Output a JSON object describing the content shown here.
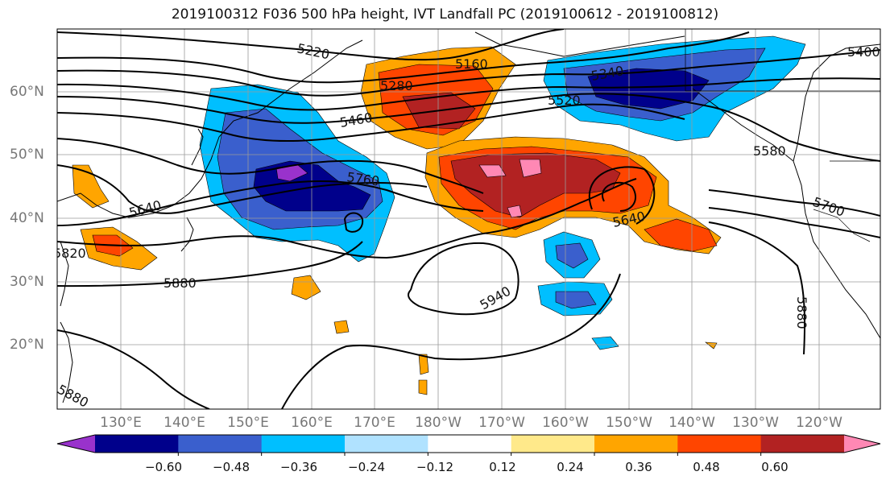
{
  "title": "2019100312 F036 500 hPa height, IVT Landfall PC (2019100612 - 2019100812)",
  "lat_labels": [
    "60°N",
    "50°N",
    "40°N",
    "30°N",
    "20°N"
  ],
  "lon_labels": [
    "130°E",
    "140°E",
    "150°E",
    "160°E",
    "170°E",
    "180°W",
    "170°W",
    "160°W",
    "150°W",
    "140°W",
    "130°W",
    "120°W"
  ],
  "contour_labels": [
    "5220",
    "5160",
    "5400",
    "5280",
    "5340",
    "5460",
    "5520",
    "5580",
    "5640",
    "5760",
    "5640",
    "5700",
    "5820",
    "5880",
    "5940",
    "5880",
    "5880"
  ],
  "colorbar": {
    "ticks": [
      "−0.60",
      "−0.48",
      "−0.36",
      "−0.24",
      "−0.12",
      "0.12",
      "0.24",
      "0.36",
      "0.48",
      "0.60"
    ],
    "colors": [
      "#9932cc",
      "#00008b",
      "#3a5fcd",
      "#00bfff",
      "#b0e2ff",
      "#ffffff",
      "#ffe98a",
      "#ffa500",
      "#ff4500",
      "#b22222",
      "#ff88b4"
    ]
  }
}
